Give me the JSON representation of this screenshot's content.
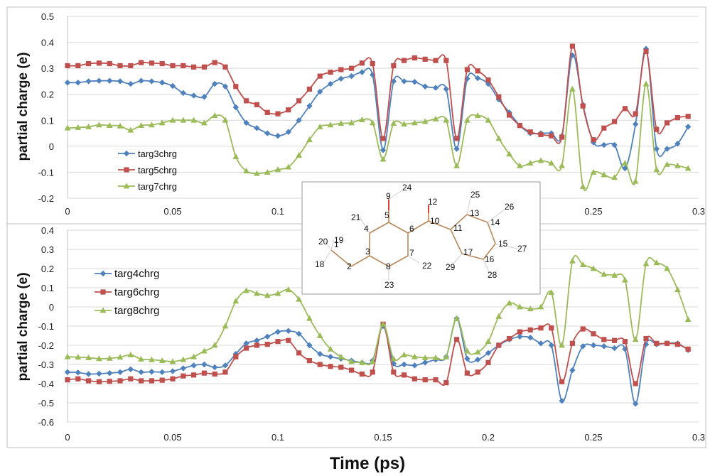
{
  "chart_data": [
    {
      "type": "line",
      "ylabel": "partial charge (e)",
      "xlabel": "",
      "xlim": [
        0,
        0.3
      ],
      "ylim": [
        -0.2,
        0.5
      ],
      "x_ticks": [
        "0",
        "0.05",
        "0.1",
        "0.15",
        "0.2",
        "0.25",
        "0.3"
      ],
      "y_ticks": [
        "-0.2",
        "-0.1",
        "0",
        "0.1",
        "0.2",
        "0.3",
        "0.4",
        "0.5"
      ],
      "legend_position": "bottom-left",
      "grid": "horizontal",
      "x": [
        0,
        0.005,
        0.01,
        0.015,
        0.02,
        0.025,
        0.03,
        0.035,
        0.04,
        0.045,
        0.05,
        0.055,
        0.06,
        0.065,
        0.07,
        0.075,
        0.08,
        0.085,
        0.09,
        0.095,
        0.1,
        0.105,
        0.11,
        0.115,
        0.12,
        0.125,
        0.13,
        0.135,
        0.14,
        0.145,
        0.15,
        0.155,
        0.16,
        0.165,
        0.17,
        0.175,
        0.18,
        0.185,
        0.19,
        0.195,
        0.2,
        0.205,
        0.21,
        0.215,
        0.22,
        0.225,
        0.23,
        0.235,
        0.24,
        0.245,
        0.25,
        0.255,
        0.26,
        0.265,
        0.27,
        0.275,
        0.28,
        0.285,
        0.29,
        0.295
      ],
      "series": [
        {
          "name": "targ3chrg",
          "color": "#4f81bd",
          "marker": "diamond",
          "values": [
            0.245,
            0.245,
            0.25,
            0.252,
            0.252,
            0.25,
            0.24,
            0.252,
            0.25,
            0.245,
            0.232,
            0.205,
            0.195,
            0.19,
            0.24,
            0.23,
            0.15,
            0.09,
            0.07,
            0.05,
            0.04,
            0.055,
            0.1,
            0.155,
            0.21,
            0.24,
            0.26,
            0.27,
            0.285,
            0.275,
            -0.015,
            0.25,
            0.25,
            0.248,
            0.23,
            0.225,
            0.22,
            -0.01,
            0.26,
            0.262,
            0.24,
            0.18,
            0.13,
            0.08,
            0.05,
            0.05,
            0.05,
            0.04,
            0.35,
            0.16,
            0.015,
            0.005,
            0.005,
            -0.085,
            0.085,
            0.375,
            -0.01,
            -0.01,
            0.01,
            0.075
          ]
        },
        {
          "name": "targ5chrg",
          "color": "#c0504d",
          "marker": "square",
          "values": [
            0.31,
            0.31,
            0.318,
            0.32,
            0.318,
            0.31,
            0.31,
            0.322,
            0.32,
            0.318,
            0.31,
            0.31,
            0.305,
            0.305,
            0.322,
            0.305,
            0.23,
            0.175,
            0.16,
            0.13,
            0.125,
            0.14,
            0.175,
            0.22,
            0.27,
            0.285,
            0.295,
            0.3,
            0.32,
            0.318,
            0.03,
            0.31,
            0.33,
            0.34,
            0.335,
            0.33,
            0.33,
            0.03,
            0.295,
            0.29,
            0.255,
            0.19,
            0.12,
            0.08,
            0.055,
            0.045,
            0.04,
            0.035,
            0.385,
            0.155,
            0.025,
            0.07,
            0.095,
            0.145,
            0.125,
            0.365,
            0.065,
            0.09,
            0.11,
            0.115
          ]
        },
        {
          "name": "targ7chrg",
          "color": "#9bbb59",
          "marker": "triangle",
          "values": [
            0.07,
            0.072,
            0.075,
            0.082,
            0.08,
            0.078,
            0.062,
            0.08,
            0.082,
            0.09,
            0.1,
            0.1,
            0.1,
            0.09,
            0.118,
            0.1,
            -0.04,
            -0.095,
            -0.105,
            -0.1,
            -0.09,
            -0.08,
            -0.035,
            0.025,
            0.075,
            0.082,
            0.088,
            0.09,
            0.102,
            0.09,
            -0.05,
            0.088,
            0.085,
            0.09,
            0.095,
            0.105,
            0.1,
            -0.075,
            0.1,
            0.118,
            0.1,
            0.03,
            -0.03,
            -0.075,
            -0.065,
            -0.055,
            -0.065,
            -0.075,
            0.22,
            -0.155,
            -0.1,
            -0.11,
            -0.12,
            -0.065,
            -0.135,
            0.24,
            -0.09,
            -0.07,
            -0.075,
            -0.085
          ]
        }
      ]
    },
    {
      "type": "line",
      "ylabel": "partial charge (e)",
      "xlabel": "Time (ps)",
      "xlim": [
        0,
        0.3
      ],
      "ylim": [
        -0.6,
        0.4
      ],
      "x_ticks": [
        "0",
        "0.05",
        "0.1",
        "0.15",
        "0.2",
        "0.25",
        "0.3"
      ],
      "y_ticks": [
        "-0.6",
        "-0.5",
        "-0.4",
        "-0.3",
        "-0.2",
        "-0.1",
        "0",
        "0.1",
        "0.2",
        "0.3",
        "0.4"
      ],
      "legend_position": "top-left",
      "grid": "horizontal",
      "x": [
        0,
        0.005,
        0.01,
        0.015,
        0.02,
        0.025,
        0.03,
        0.035,
        0.04,
        0.045,
        0.05,
        0.055,
        0.06,
        0.065,
        0.07,
        0.075,
        0.08,
        0.085,
        0.09,
        0.095,
        0.1,
        0.105,
        0.11,
        0.115,
        0.12,
        0.125,
        0.13,
        0.135,
        0.14,
        0.145,
        0.15,
        0.155,
        0.16,
        0.165,
        0.17,
        0.175,
        0.18,
        0.185,
        0.19,
        0.195,
        0.2,
        0.205,
        0.21,
        0.215,
        0.22,
        0.225,
        0.23,
        0.235,
        0.24,
        0.245,
        0.25,
        0.255,
        0.26,
        0.265,
        0.27,
        0.275,
        0.28,
        0.285,
        0.29,
        0.295
      ],
      "series": [
        {
          "name": "targ4chrg",
          "color": "#4f81bd",
          "marker": "diamond",
          "values": [
            -0.34,
            -0.342,
            -0.35,
            -0.348,
            -0.345,
            -0.34,
            -0.325,
            -0.34,
            -0.338,
            -0.34,
            -0.335,
            -0.32,
            -0.305,
            -0.3,
            -0.315,
            -0.305,
            -0.245,
            -0.19,
            -0.175,
            -0.155,
            -0.13,
            -0.125,
            -0.14,
            -0.2,
            -0.245,
            -0.26,
            -0.27,
            -0.28,
            -0.29,
            -0.28,
            -0.1,
            -0.295,
            -0.3,
            -0.305,
            -0.29,
            -0.275,
            -0.26,
            -0.06,
            -0.27,
            -0.275,
            -0.24,
            -0.2,
            -0.17,
            -0.155,
            -0.16,
            -0.19,
            -0.2,
            -0.49,
            -0.33,
            -0.205,
            -0.2,
            -0.205,
            -0.215,
            -0.22,
            -0.505,
            -0.195,
            -0.195,
            -0.19,
            -0.19,
            -0.225
          ]
        },
        {
          "name": "targ6chrg",
          "color": "#c0504d",
          "marker": "square",
          "values": [
            -0.38,
            -0.375,
            -0.385,
            -0.39,
            -0.388,
            -0.385,
            -0.375,
            -0.385,
            -0.385,
            -0.382,
            -0.375,
            -0.36,
            -0.355,
            -0.345,
            -0.35,
            -0.34,
            -0.26,
            -0.215,
            -0.2,
            -0.195,
            -0.18,
            -0.175,
            -0.24,
            -0.28,
            -0.3,
            -0.31,
            -0.315,
            -0.33,
            -0.35,
            -0.34,
            -0.09,
            -0.34,
            -0.355,
            -0.375,
            -0.38,
            -0.38,
            -0.395,
            -0.17,
            -0.345,
            -0.34,
            -0.29,
            -0.2,
            -0.165,
            -0.13,
            -0.12,
            -0.11,
            -0.11,
            -0.39,
            -0.19,
            -0.115,
            -0.14,
            -0.17,
            -0.175,
            -0.18,
            -0.4,
            -0.165,
            -0.19,
            -0.19,
            -0.195,
            -0.22
          ]
        },
        {
          "name": "targ8chrg",
          "color": "#9bbb59",
          "marker": "triangle",
          "values": [
            -0.26,
            -0.262,
            -0.265,
            -0.27,
            -0.268,
            -0.262,
            -0.25,
            -0.272,
            -0.275,
            -0.28,
            -0.285,
            -0.275,
            -0.26,
            -0.23,
            -0.2,
            -0.1,
            0.03,
            0.085,
            0.07,
            0.06,
            0.07,
            0.09,
            0.04,
            -0.06,
            -0.15,
            -0.22,
            -0.26,
            -0.285,
            -0.29,
            -0.285,
            -0.09,
            -0.27,
            -0.25,
            -0.26,
            -0.265,
            -0.265,
            -0.26,
            -0.06,
            -0.23,
            -0.235,
            -0.18,
            -0.05,
            0.02,
            0.0,
            -0.01,
            0.0,
            0.075,
            -0.2,
            0.24,
            0.22,
            0.2,
            0.17,
            0.165,
            0.14,
            -0.17,
            0.225,
            0.23,
            0.2,
            0.09,
            -0.065
          ]
        }
      ]
    }
  ],
  "inset": {
    "atom_labels": [
      "1",
      "2",
      "3",
      "4",
      "5",
      "6",
      "7",
      "8",
      "9",
      "10",
      "11",
      "12",
      "13",
      "14",
      "15",
      "16",
      "17",
      "18",
      "19",
      "20",
      "21",
      "22",
      "23",
      "24",
      "25",
      "26",
      "27",
      "28",
      "29"
    ]
  }
}
